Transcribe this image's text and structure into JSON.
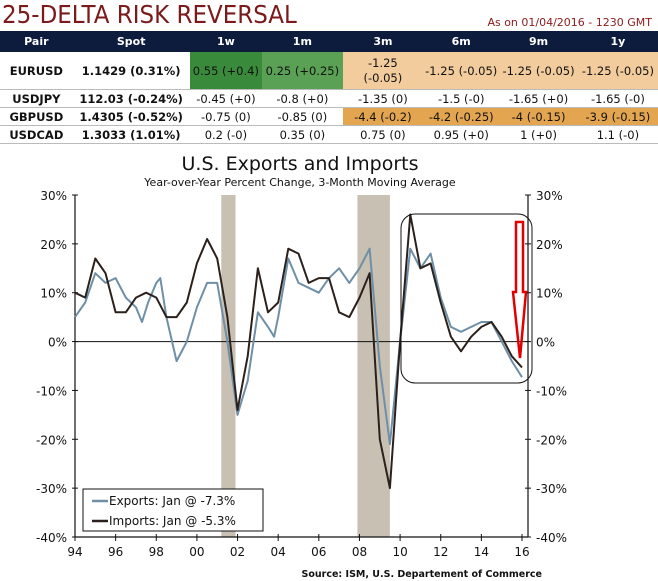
{
  "header": {
    "title": "25-DELTA RISK REVERSAL",
    "as_of": "As on 01/04/2016 - 1230 GMT"
  },
  "table": {
    "columns": [
      "Pair",
      "Spot",
      "1w",
      "1m",
      "3m",
      "6m",
      "9m",
      "1y"
    ],
    "rows": [
      {
        "cells": [
          "EURUSD",
          "1.1429 (0.31%)",
          "0.55 (+0.4)",
          "0.25 (+0.25)",
          "-1.25 (-0.05)",
          "-1.25 (-0.05)",
          "-1.25 (-0.05)",
          "-1.25 (-0.05)"
        ],
        "shade": [
          "",
          "",
          "g1",
          "g2",
          "o1",
          "o1",
          "o1",
          "o1"
        ]
      },
      {
        "cells": [
          "USDJPY",
          "112.03 (-0.24%)",
          "-0.45 (+0)",
          "-0.8 (+0)",
          "-1.35 (0)",
          "-1.5 (-0)",
          "-1.65 (+0)",
          "-1.65 (-0)"
        ],
        "shade": [
          "",
          "",
          "",
          "",
          "",
          "",
          "",
          ""
        ]
      },
      {
        "cells": [
          "GBPUSD",
          "1.4305 (-0.52%)",
          "-0.75 (0)",
          "-0.85 (0)",
          "-4.4 (-0.2)",
          "-4.2 (-0.25)",
          "-4 (-0.15)",
          "-3.9 (-0.15)"
        ],
        "shade": [
          "",
          "",
          "",
          "",
          "o2",
          "o2",
          "o2",
          "o2"
        ]
      },
      {
        "cells": [
          "USDCAD",
          "1.3033 (1.01%)",
          "0.2 (-0)",
          "0.35 (0)",
          "0.75 (0)",
          "0.95 (+0)",
          "1 (+0)",
          "1.1 (-0)"
        ],
        "shade": [
          "",
          "",
          "",
          "",
          "",
          "",
          "",
          ""
        ]
      }
    ]
  },
  "colors": {
    "exports": "#6f8fa6",
    "imports": "#2b211c",
    "recession": "#c8c0b2",
    "arrow": "#e00000"
  },
  "chart_data": {
    "type": "line",
    "title": "U.S. Exports and Imports",
    "subtitle": "Year-over-Year Percent Change, 3-Month Moving Average",
    "source": "Source: ISM, U.S. Departement of Commerce",
    "xlim": [
      1994,
      2016
    ],
    "ylim": [
      -40,
      30
    ],
    "x_ticks": [
      "94",
      "96",
      "98",
      "00",
      "02",
      "04",
      "06",
      "08",
      "10",
      "12",
      "14",
      "16"
    ],
    "y_ticks": [
      "30%",
      "20%",
      "10%",
      "0%",
      "-10%",
      "-20%",
      "-30%",
      "-40%"
    ],
    "recessions": [
      [
        2001.2,
        2001.9
      ],
      [
        2007.9,
        2009.5
      ]
    ],
    "legend": [
      "Exports: Jan @ -7.3%",
      "Imports: Jan @ -5.3%"
    ],
    "series": [
      {
        "name": "Exports",
        "points": [
          [
            1994,
            5
          ],
          [
            1994.5,
            8
          ],
          [
            1995,
            14
          ],
          [
            1995.5,
            12
          ],
          [
            1996,
            13
          ],
          [
            1996.5,
            9
          ],
          [
            1997,
            7
          ],
          [
            1997.3,
            4
          ],
          [
            1997.6,
            8
          ],
          [
            1998,
            12
          ],
          [
            1998.2,
            13
          ],
          [
            1998.5,
            5
          ],
          [
            1999,
            -4
          ],
          [
            1999.5,
            0
          ],
          [
            2000,
            7
          ],
          [
            2000.5,
            12
          ],
          [
            2001,
            12
          ],
          [
            2001.5,
            0
          ],
          [
            2002,
            -15
          ],
          [
            2002.5,
            -8
          ],
          [
            2003,
            6
          ],
          [
            2003.5,
            3
          ],
          [
            2003.8,
            1
          ],
          [
            2004,
            5
          ],
          [
            2004.5,
            17
          ],
          [
            2005,
            12
          ],
          [
            2005.5,
            11
          ],
          [
            2006,
            10
          ],
          [
            2006.5,
            13
          ],
          [
            2007,
            15
          ],
          [
            2007.5,
            12
          ],
          [
            2008,
            15
          ],
          [
            2008.5,
            19
          ],
          [
            2009,
            -5
          ],
          [
            2009.5,
            -21
          ],
          [
            2010,
            0
          ],
          [
            2010.5,
            19
          ],
          [
            2011,
            15
          ],
          [
            2011.5,
            18
          ],
          [
            2012,
            9
          ],
          [
            2012.5,
            3
          ],
          [
            2013,
            2
          ],
          [
            2013.5,
            3
          ],
          [
            2014,
            4
          ],
          [
            2014.5,
            4
          ],
          [
            2015,
            0
          ],
          [
            2015.5,
            -4
          ],
          [
            2016,
            -7.3
          ]
        ]
      },
      {
        "name": "Imports",
        "points": [
          [
            1994,
            10
          ],
          [
            1994.5,
            9
          ],
          [
            1995,
            17
          ],
          [
            1995.5,
            14
          ],
          [
            1996,
            6
          ],
          [
            1996.5,
            6
          ],
          [
            1997,
            9
          ],
          [
            1997.5,
            10
          ],
          [
            1998,
            9
          ],
          [
            1998.5,
            5
          ],
          [
            1999,
            5
          ],
          [
            1999.5,
            8
          ],
          [
            2000,
            16
          ],
          [
            2000.5,
            21
          ],
          [
            2001,
            17
          ],
          [
            2001.5,
            5
          ],
          [
            2002,
            -14
          ],
          [
            2002.5,
            -3
          ],
          [
            2003,
            15
          ],
          [
            2003.5,
            6
          ],
          [
            2004,
            8
          ],
          [
            2004.5,
            19
          ],
          [
            2005,
            18
          ],
          [
            2005.5,
            12
          ],
          [
            2006,
            13
          ],
          [
            2006.5,
            13
          ],
          [
            2007,
            6
          ],
          [
            2007.5,
            5
          ],
          [
            2008,
            9
          ],
          [
            2008.5,
            14
          ],
          [
            2009,
            -20
          ],
          [
            2009.5,
            -30
          ],
          [
            2010,
            0
          ],
          [
            2010.5,
            26
          ],
          [
            2011,
            15
          ],
          [
            2011.5,
            16
          ],
          [
            2012,
            8
          ],
          [
            2012.5,
            1
          ],
          [
            2013,
            -2
          ],
          [
            2013.5,
            1
          ],
          [
            2014,
            3
          ],
          [
            2014.5,
            4
          ],
          [
            2015,
            1
          ],
          [
            2015.5,
            -3
          ],
          [
            2016,
            -5.3
          ]
        ]
      }
    ]
  }
}
